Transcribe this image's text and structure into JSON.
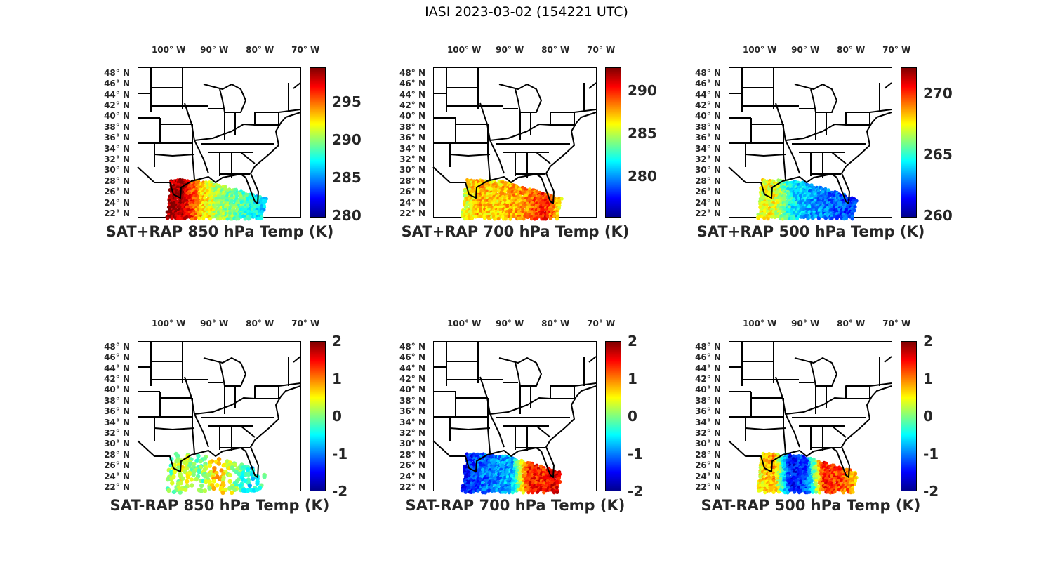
{
  "figure_title": "IASI 2023-03-02 (154221 UTC)",
  "lon_labels": [
    "100° W",
    "90° W",
    "80° W",
    "70° W"
  ],
  "lon_values": [
    100,
    90,
    80,
    70
  ],
  "lat_labels": [
    "48° N",
    "46° N",
    "44° N",
    "42° N",
    "40° N",
    "38° N",
    "36° N",
    "34° N",
    "32° N",
    "30° N",
    "28° N",
    "26° N",
    "24° N",
    "22° N"
  ],
  "lat_values": [
    48,
    46,
    44,
    42,
    40,
    38,
    36,
    34,
    32,
    30,
    28,
    26,
    24,
    22
  ],
  "colormap": "jet",
  "panels": [
    {
      "title": "SAT+RAP 850 hPa Temp (K)",
      "cbar_range": [
        279.7,
        299.5
      ],
      "cbar_ticks": [
        "280",
        "285",
        "290",
        "295"
      ],
      "swath_profile": [
        0.97,
        0.95,
        0.7,
        0.55,
        0.5,
        0.4,
        0.33
      ],
      "density": 1
    },
    {
      "title": "SAT+RAP 700 hPa Temp (K)",
      "cbar_range": [
        275.2,
        292.7
      ],
      "cbar_ticks": [
        "280",
        "285",
        "290"
      ],
      "swath_profile": [
        0.58,
        0.7,
        0.66,
        0.7,
        0.75,
        0.85,
        0.62
      ],
      "density": 1
    },
    {
      "title": "SAT+RAP 500 hPa Temp (K)",
      "cbar_range": [
        259.8,
        272.1
      ],
      "cbar_ticks": [
        "260",
        "265",
        "270"
      ],
      "swath_profile": [
        0.6,
        0.62,
        0.38,
        0.3,
        0.25,
        0.2,
        0.17
      ],
      "density": 1
    },
    {
      "title": "SAT-RAP 850 hPa Temp (K)",
      "cbar_range": [
        -2,
        2
      ],
      "cbar_ticks": [
        "-2",
        "-1",
        "0",
        "1",
        "2"
      ],
      "swath_profile": [
        0.45,
        0.6,
        0.45,
        0.7,
        0.55,
        0.35,
        0.5
      ],
      "density": 0.35
    },
    {
      "title": "SAT-RAP 700 hPa Temp (K)",
      "cbar_range": [
        -2,
        2
      ],
      "cbar_ticks": [
        "-2",
        "-1",
        "0",
        "1",
        "2"
      ],
      "swath_profile": [
        0.1,
        0.22,
        0.25,
        0.3,
        0.85,
        0.85,
        0.92
      ],
      "density": 1
    },
    {
      "title": "SAT-RAP 500 hPa Temp (K)",
      "cbar_range": [
        -2,
        2
      ],
      "cbar_ticks": [
        "-2",
        "-1",
        "0",
        "1",
        "2"
      ],
      "swath_profile": [
        0.62,
        0.72,
        0.12,
        0.22,
        0.85,
        0.8,
        0.68
      ],
      "density": 1
    }
  ]
}
